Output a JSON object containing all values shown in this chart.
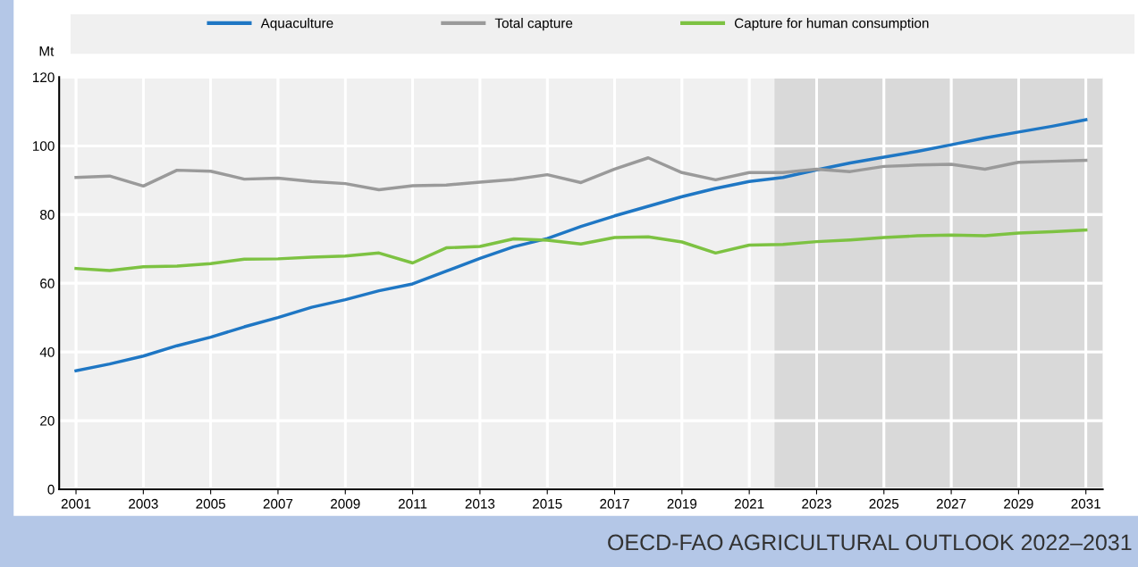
{
  "chart_data": {
    "type": "line",
    "ylabel": "Mt",
    "x": [
      2001,
      2002,
      2003,
      2004,
      2005,
      2006,
      2007,
      2008,
      2009,
      2010,
      2011,
      2012,
      2013,
      2014,
      2015,
      2016,
      2017,
      2018,
      2019,
      2020,
      2021,
      2022,
      2023,
      2024,
      2025,
      2026,
      2027,
      2028,
      2029,
      2030,
      2031
    ],
    "series": [
      {
        "name": "Aquaculture",
        "color": "#1f77c4",
        "values": [
          34.5,
          36.5,
          38.8,
          41.8,
          44.3,
          47.3,
          50.0,
          53.0,
          55.2,
          57.8,
          59.8,
          63.5,
          67.2,
          70.6,
          73.0,
          76.5,
          79.6,
          82.4,
          85.2,
          87.6,
          89.6,
          90.8,
          93.0,
          95.0,
          96.7,
          98.4,
          100.3,
          102.3,
          104.0,
          105.7,
          107.6
        ]
      },
      {
        "name": "Total capture",
        "color": "#9a9a9a",
        "values": [
          90.8,
          91.2,
          88.3,
          92.9,
          92.6,
          90.3,
          90.6,
          89.6,
          89.0,
          87.2,
          88.4,
          88.6,
          89.4,
          90.2,
          91.6,
          89.3,
          93.2,
          96.5,
          92.2,
          90.1,
          92.2,
          92.2,
          93.2,
          92.5,
          94.0,
          94.4,
          94.6,
          93.2,
          95.2,
          95.5,
          95.8
        ]
      },
      {
        "name": "Capture for human consumption",
        "color": "#7dc242",
        "values": [
          64.3,
          63.7,
          64.8,
          65.0,
          65.7,
          67.0,
          67.1,
          67.6,
          67.9,
          68.8,
          65.9,
          70.3,
          70.7,
          72.9,
          72.5,
          71.4,
          73.3,
          73.5,
          72.0,
          68.8,
          71.1,
          71.3,
          72.1,
          72.6,
          73.3,
          73.8,
          74.0,
          73.8,
          74.6,
          75.0,
          75.5
        ]
      }
    ],
    "xlim": [
      2000.5,
      2031.5
    ],
    "xticks": [
      2001,
      2003,
      2005,
      2007,
      2009,
      2011,
      2013,
      2015,
      2017,
      2019,
      2021,
      2023,
      2025,
      2027,
      2029,
      2031
    ],
    "ylim": [
      0,
      120
    ],
    "yticks": [
      0,
      20,
      40,
      60,
      80,
      100,
      120
    ],
    "bands": [
      {
        "axis": "x",
        "from": 2021.75,
        "to": 2031.5,
        "color": "#d9d9d9"
      }
    ],
    "grid": true,
    "legend": "top",
    "marker": "none",
    "line_style": "solid",
    "annotations": [
      "OECD-FAO AGRICULTURAL OUTLOOK 2022–2031"
    ]
  }
}
